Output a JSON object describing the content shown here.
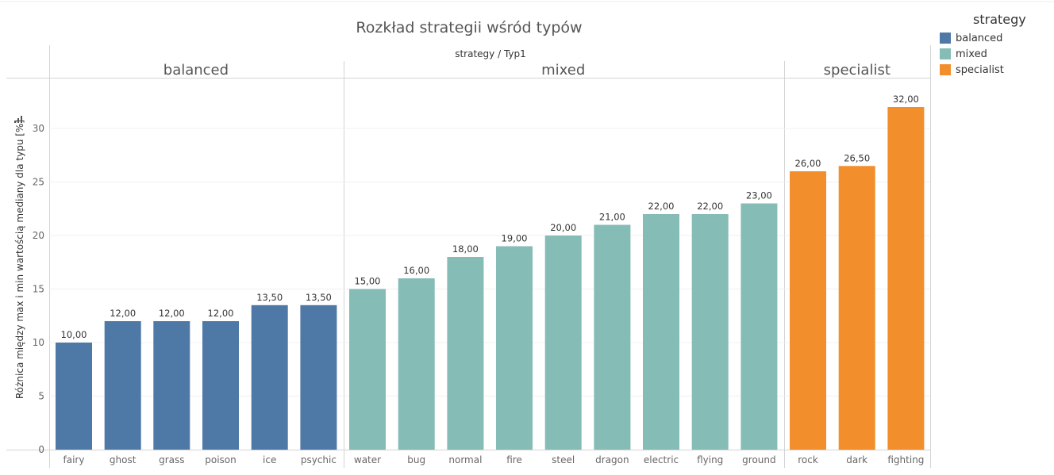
{
  "chart_data": {
    "type": "bar",
    "title": "Rozkład strategii wśród typów",
    "column_header": "strategy / Typ1",
    "ylabel": "Różnica między max i min wartością mediany dla typu [%]",
    "ylim": [
      0,
      34
    ],
    "yticks": [
      0,
      5,
      10,
      15,
      20,
      25,
      30
    ],
    "grid": true,
    "legend_title": "strategy",
    "legend_position": "top-right",
    "panels": [
      {
        "name": "balanced",
        "color": "#4e79a7",
        "categories": [
          "fairy",
          "ghost",
          "grass",
          "poison",
          "ice",
          "psychic"
        ],
        "values": [
          10,
          12,
          12,
          12,
          13.5,
          13.5
        ],
        "labels": [
          "10,00",
          "12,00",
          "12,00",
          "12,00",
          "13,50",
          "13,50"
        ]
      },
      {
        "name": "mixed",
        "color": "#86bcb6",
        "categories": [
          "water",
          "bug",
          "normal",
          "fire",
          "steel",
          "dragon",
          "electric",
          "flying",
          "ground"
        ],
        "values": [
          15,
          16,
          18,
          19,
          20,
          21,
          22,
          22,
          23
        ],
        "labels": [
          "15,00",
          "16,00",
          "18,00",
          "19,00",
          "20,00",
          "21,00",
          "22,00",
          "22,00",
          "23,00"
        ]
      },
      {
        "name": "specialist",
        "color": "#f28e2b",
        "categories": [
          "rock",
          "dark",
          "fighting"
        ],
        "values": [
          26,
          26.5,
          32
        ],
        "labels": [
          "26,00",
          "26,50",
          "32,00"
        ]
      }
    ]
  }
}
